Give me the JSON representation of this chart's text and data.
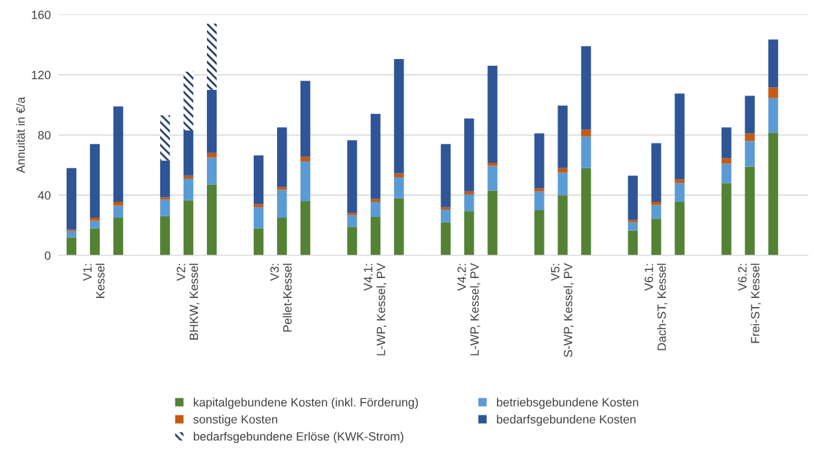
{
  "chart_data": {
    "type": "bar",
    "stacked": true,
    "ylabel": "Annuität in €/a",
    "categories": [
      null,
      "V1:\nKessel",
      null,
      null,
      null,
      "V2:\nBHKW, Kessel",
      null,
      null,
      null,
      "V3:\nPellet-Kessel",
      null,
      null,
      null,
      "V4.1:\nL-WP, Kessel, PV",
      null,
      null,
      null,
      "V4.2:\nL-WP, Kessel, PV",
      null,
      null,
      null,
      "V5:\nS-WP, Kessel, PV",
      null,
      null,
      null,
      "V6.1:\nDach-ST, Kessel",
      null,
      null,
      null,
      "V6.2:\nFrei-ST, Kessel",
      null
    ],
    "series": [
      {
        "name": "kapitalgebundene Kosten (inkl. Förderung)",
        "color": "#548235",
        "values": [
          12,
          18,
          25,
          null,
          26,
          36.5,
          47,
          null,
          18,
          25,
          36,
          null,
          19,
          25.5,
          38,
          null,
          22,
          29.5,
          43,
          null,
          30,
          40,
          58,
          null,
          16.5,
          24.5,
          35.5,
          null,
          48,
          59,
          81.5
        ]
      },
      {
        "name": "betriebsgebundene Kosten",
        "color": "#5b9bd5",
        "values": [
          4,
          5,
          8,
          null,
          11,
          14.5,
          18,
          null,
          14,
          18.5,
          26.5,
          null,
          7.5,
          10,
          14,
          null,
          8.5,
          11,
          16.5,
          null,
          12.5,
          15,
          21,
          null,
          5.5,
          9,
          12.5,
          null,
          13,
          17,
          23
        ]
      },
      {
        "name": "sonstige Kosten",
        "color": "#c55a11",
        "values": [
          1,
          2,
          2.5,
          null,
          1.5,
          2,
          3,
          null,
          2,
          2,
          3,
          null,
          1.5,
          2,
          2.5,
          null,
          1.5,
          2,
          2,
          null,
          2,
          3,
          4.5,
          null,
          1.5,
          2,
          2.5,
          null,
          3.5,
          5,
          7
        ]
      },
      {
        "name": "bedarfsgebundene Kosten",
        "color": "#2f5597",
        "values": [
          41,
          49,
          63.5,
          null,
          24.5,
          30,
          42,
          null,
          32.5,
          39.5,
          50.5,
          null,
          48.5,
          56.5,
          76,
          null,
          42,
          48.5,
          64.5,
          null,
          36.5,
          41.5,
          55.5,
          null,
          29.5,
          39,
          57,
          null,
          20.5,
          25,
          32
        ]
      },
      {
        "name": "bedarfsgebundene Erlöse (KWK-Strom)",
        "color": "#203864",
        "values": [
          null,
          null,
          null,
          null,
          30,
          39,
          44,
          null,
          null,
          null,
          null,
          null,
          null,
          null,
          null,
          null,
          null,
          null,
          null,
          null,
          null,
          null,
          null,
          null,
          null,
          null,
          null,
          null,
          null,
          null,
          null
        ]
      }
    ],
    "ylim": [
      0,
      160
    ],
    "yticks": [
      0,
      40,
      80,
      120,
      160
    ],
    "grid": "y",
    "legend": "bottom"
  }
}
